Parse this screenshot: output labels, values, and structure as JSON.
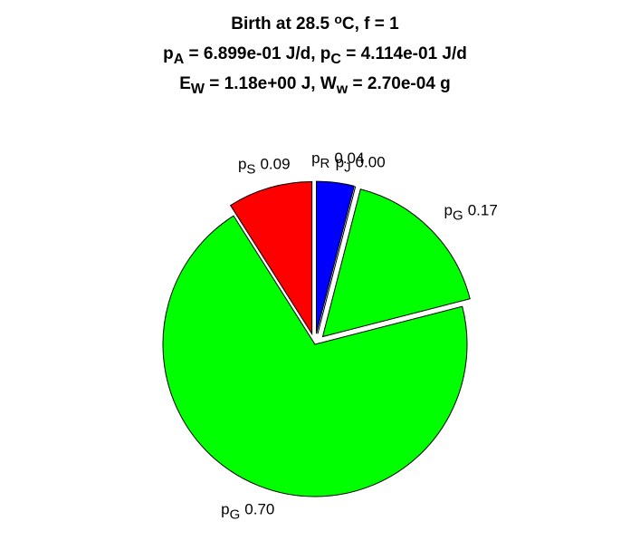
{
  "chart_data": {
    "type": "pie",
    "title_lines": [
      [
        {
          "text": "Birth at 28.5 "
        },
        {
          "text": "o",
          "sup": true
        },
        {
          "text": "C, f = 1"
        }
      ],
      [
        {
          "text": "p"
        },
        {
          "text": "A",
          "sub": true
        },
        {
          "text": " = 6.899e-01 J/d, p"
        },
        {
          "text": "C",
          "sub": true
        },
        {
          "text": " = 4.114e-01 J/d"
        }
      ],
      [
        {
          "text": "E"
        },
        {
          "text": "W",
          "sub": true
        },
        {
          "text": " = 1.18e+00 J, W"
        },
        {
          "text": "w",
          "sub": true
        },
        {
          "text": " = 2.70e-04 g"
        }
      ]
    ],
    "slices": [
      {
        "name": "p",
        "sub": "R",
        "color": "#0000ff",
        "explode": true
      },
      {
        "name": "p",
        "sub": "J",
        "color": "#ff00ff",
        "explode": true
      },
      {
        "name": "p",
        "sub": "G",
        "color": "#00ff00",
        "explode": true
      },
      {
        "name": "p",
        "sub": "G",
        "color": "#00ff00",
        "explode": false
      },
      {
        "name": "p",
        "sub": "S",
        "color": "#ff0000",
        "explode": true
      }
    ],
    "values": [
      0.04,
      0.0,
      0.17,
      0.7,
      0.09
    ],
    "value_labels": [
      "0.04",
      "0.00",
      "0.17",
      "0.70",
      "0.09"
    ]
  }
}
